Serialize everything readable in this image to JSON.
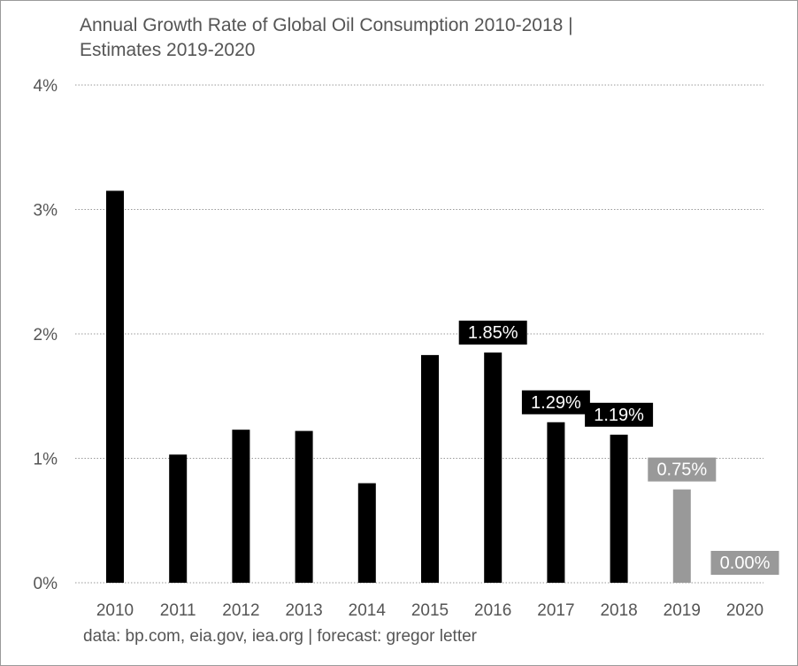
{
  "chart_data": {
    "type": "bar",
    "title_line1": "Annual Growth Rate of Global Oil Consumption 2010-2018 |",
    "title_line2": "Estimates 2019-2020",
    "source": "data: bp.com, eia.gov, iea.org | forecast: gregor letter",
    "categories": [
      "2010",
      "2011",
      "2012",
      "2013",
      "2014",
      "2015",
      "2016",
      "2017",
      "2018",
      "2019",
      "2020"
    ],
    "values": [
      3.15,
      1.03,
      1.23,
      1.22,
      0.8,
      1.83,
      1.85,
      1.29,
      1.19,
      0.75,
      0.0
    ],
    "estimate": [
      false,
      false,
      false,
      false,
      false,
      false,
      false,
      false,
      false,
      true,
      true
    ],
    "labels": [
      "",
      "",
      "",
      "",
      "",
      "",
      "1.85%",
      "1.29%",
      "1.19%",
      "0.75%",
      "0.00%"
    ],
    "yticks": [
      0,
      1,
      2,
      3,
      4
    ],
    "ytick_labels": [
      "0%",
      "1%",
      "2%",
      "3%",
      "4%"
    ],
    "ylim": [
      0,
      4
    ],
    "grid": true,
    "colors": {
      "actual": "#000000",
      "estimate": "#999999",
      "text": "#555555",
      "grid": "#9a9a9a"
    }
  }
}
